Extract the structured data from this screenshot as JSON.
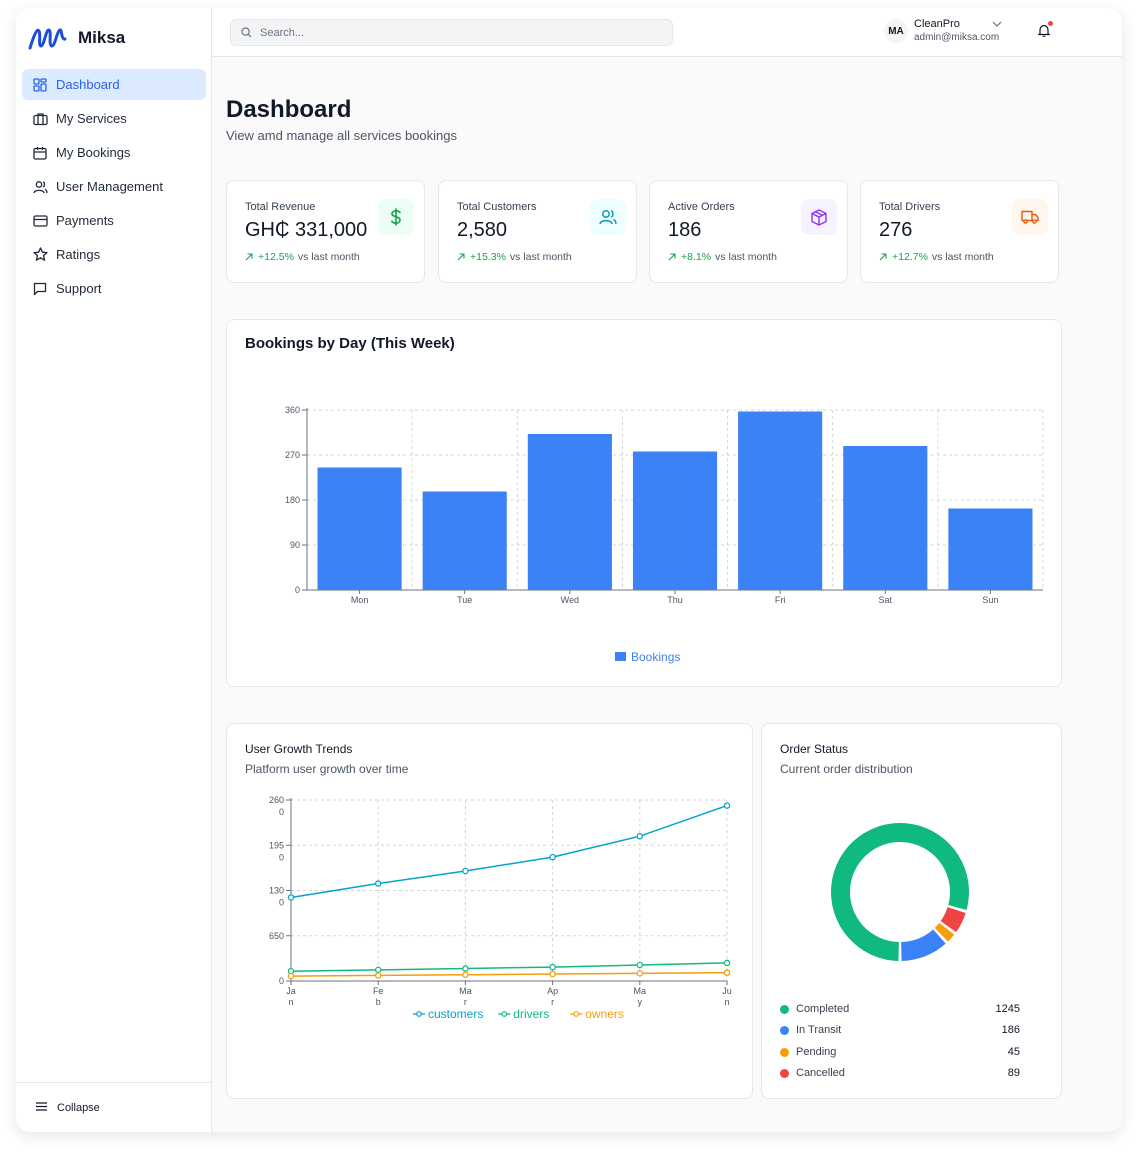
{
  "brand": {
    "name": "Miksa"
  },
  "sidebar": {
    "items": [
      {
        "label": "Dashboard",
        "icon": "dashboard-icon",
        "active": true
      },
      {
        "label": "My Services",
        "icon": "briefcase-icon"
      },
      {
        "label": "My Bookings",
        "icon": "calendar-icon"
      },
      {
        "label": "User Management",
        "icon": "users-icon"
      },
      {
        "label": "Payments",
        "icon": "credit-card-icon"
      },
      {
        "label": "Ratings",
        "icon": "star-icon"
      },
      {
        "label": "Support",
        "icon": "message-icon"
      }
    ],
    "collapse_label": "Collapse"
  },
  "header": {
    "search_placeholder": "Search...",
    "user": {
      "initials": "MA",
      "name": "CleanPro",
      "email": "admin@miksa.com"
    }
  },
  "page": {
    "title": "Dashboard",
    "subtitle": "View amd manage all services bookings"
  },
  "stats": [
    {
      "label": "Total Revenue",
      "value": "GH₵ 331,000",
      "change": "+12.5%",
      "suffix": "vs last month",
      "icon": "dollar-icon",
      "icon_color": "#16a34a",
      "icon_bg": "#ecfdf3"
    },
    {
      "label": "Total Customers",
      "value": "2,580",
      "change": "+15.3%",
      "suffix": "vs last month",
      "icon": "users-icon",
      "icon_color": "#0891b2",
      "icon_bg": "#ecfeff"
    },
    {
      "label": "Active Orders",
      "value": "186",
      "change": "+8.1%",
      "suffix": "vs last month",
      "icon": "package-icon",
      "icon_color": "#9333ea",
      "icon_bg": "#f5f3ff"
    },
    {
      "label": "Total Drivers",
      "value": "276",
      "change": "+12.7%",
      "suffix": "vs last month",
      "icon": "truck-icon",
      "icon_color": "#ea580c",
      "icon_bg": "#fff7ed"
    }
  ],
  "bookings_card": {
    "title": "Bookings by Day (This Week)"
  },
  "growth_card": {
    "title": "User Growth Trends",
    "subtitle": "Platform user growth over time"
  },
  "status_card": {
    "title": "Order Status",
    "subtitle": "Current order distribution"
  },
  "chart_data": [
    {
      "type": "bar",
      "title": "Bookings by Day (This Week)",
      "categories": [
        "Mon",
        "Tue",
        "Wed",
        "Thu",
        "Fri",
        "Sat",
        "Sun"
      ],
      "series": [
        {
          "name": "Bookings",
          "values": [
            245,
            197,
            312,
            277,
            357,
            288,
            163
          ],
          "color": "#3b82f6"
        }
      ],
      "ylim": [
        0,
        360
      ],
      "yticks": [
        "0",
        "90",
        "180",
        "270",
        "360"
      ],
      "grid": true,
      "legend": "bottom-center"
    },
    {
      "type": "line",
      "title": "User Growth Trends",
      "categories": [
        "Jan",
        "Feb",
        "Mar",
        "Apr",
        "May",
        "Jun"
      ],
      "series": [
        {
          "name": "customers",
          "values": [
            1200,
            1400,
            1580,
            1780,
            2080,
            2520
          ],
          "color": "#06a3c9"
        },
        {
          "name": "drivers",
          "values": [
            140,
            160,
            180,
            200,
            230,
            260
          ],
          "color": "#10b981"
        },
        {
          "name": "owners",
          "values": [
            70,
            80,
            90,
            100,
            110,
            120
          ],
          "color": "#f59e0b"
        }
      ],
      "ylim": [
        0,
        2600
      ],
      "yticks": [
        "0",
        "650",
        "1300",
        "1950",
        "2600"
      ],
      "grid": true,
      "legend": "bottom-center"
    },
    {
      "type": "pie",
      "title": "Order Status",
      "categories": [
        "Completed",
        "In Transit",
        "Pending",
        "Cancelled"
      ],
      "values": [
        1245,
        186,
        45,
        89
      ],
      "colors": [
        "#10b981",
        "#3b82f6",
        "#f59e0b",
        "#ef4444"
      ],
      "donut": true
    }
  ]
}
